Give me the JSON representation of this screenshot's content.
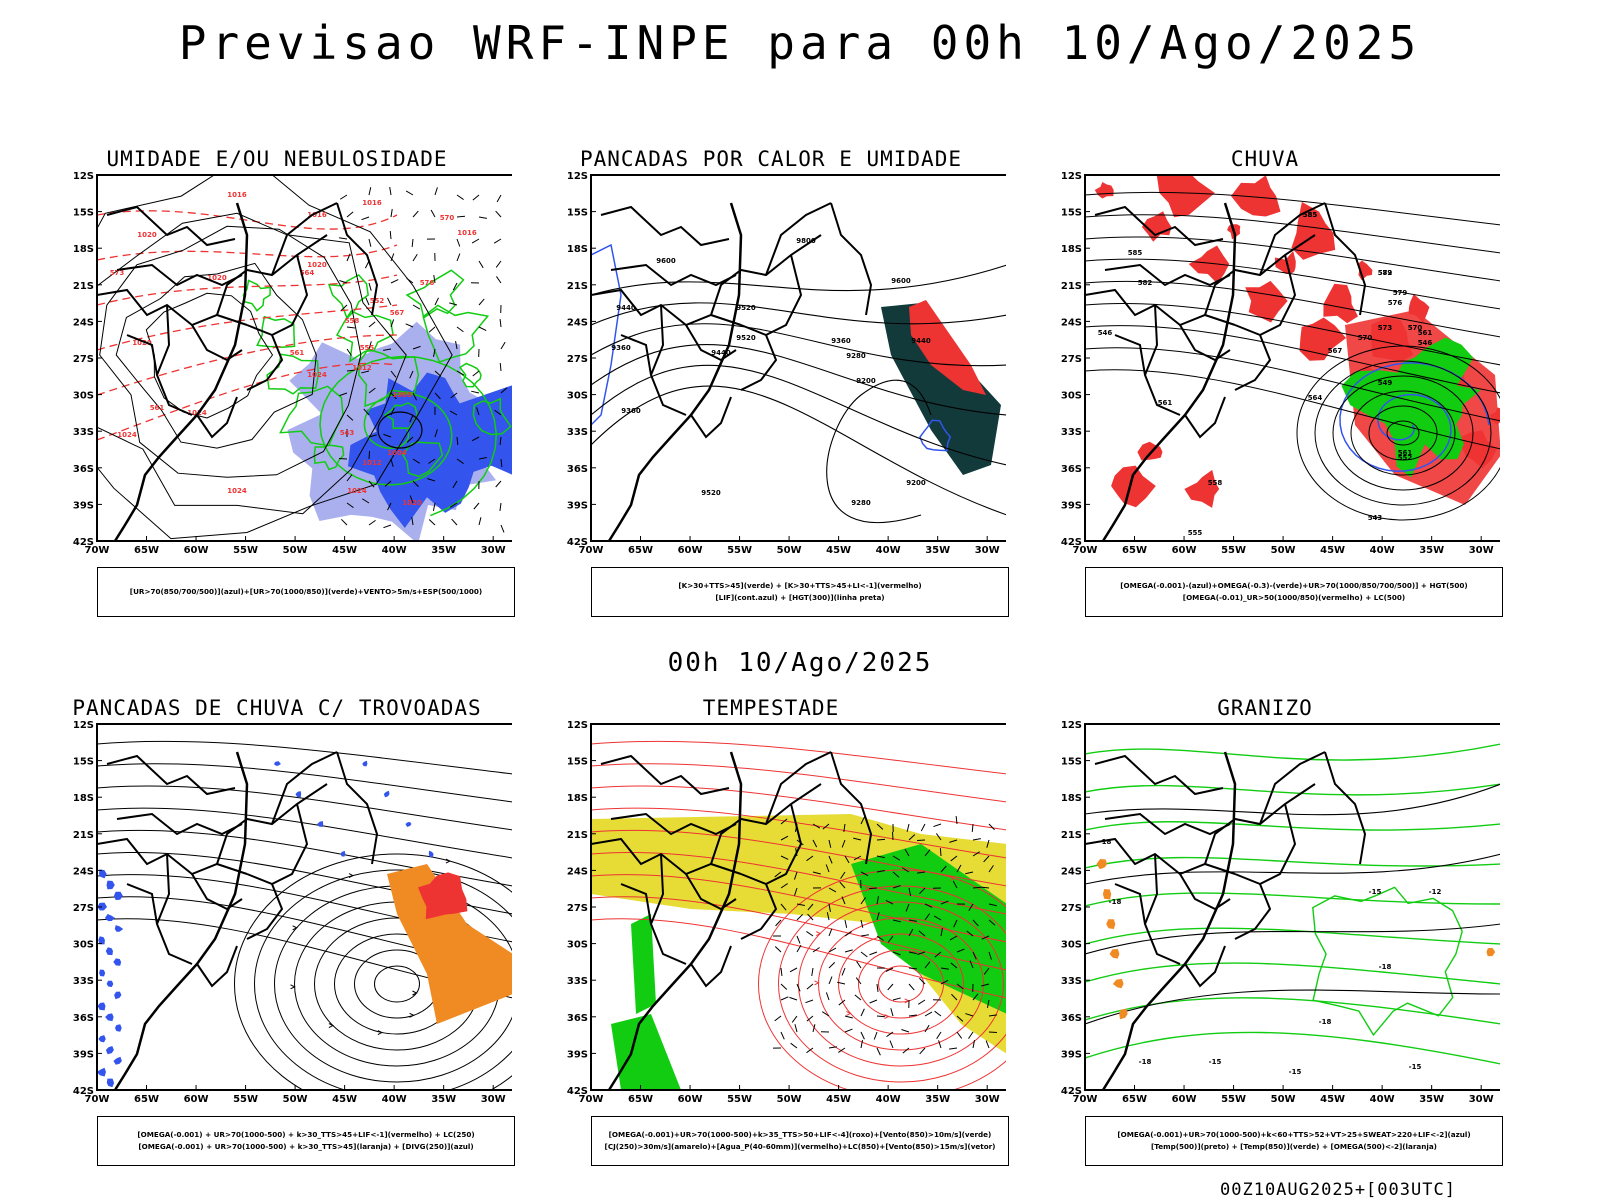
{
  "main_title": "Previsao WRF-INPE  para 00h 10/Ago/2025",
  "mid_title": "00h 10/Ago/2025",
  "footer": "00Z10AUG2025+[003UTC]",
  "axes": {
    "lat_labels": [
      "12S",
      "15S",
      "18S",
      "21S",
      "24S",
      "27S",
      "30S",
      "33S",
      "36S",
      "39S",
      "42S"
    ],
    "lon_labels": [
      "70W",
      "65W",
      "60W",
      "55W",
      "50W",
      "45W",
      "40W",
      "35W",
      "30W"
    ]
  },
  "colors": {
    "blue": "#3355ee",
    "light_blue": "#aab0ee",
    "green": "#11cc11",
    "red": "#ee3333",
    "yellow": "#e6dc35",
    "orange": "#f08a22",
    "dark_teal": "#123a3a"
  },
  "panels": [
    {
      "id": "umidade",
      "title": "UMIDADE E/OU NEBULOSIDADE",
      "legend": [
        "[UR>70(850/700/500)](azul)+[UR>70(1000/850)](verde)+VENTO>5m/s+ESP(500/1000)"
      ],
      "contour_labels": [
        "1016",
        "1016",
        "1016",
        "1016",
        "1020",
        "1020",
        "1020",
        "1020",
        "1024",
        "1024",
        "1024",
        "1024",
        "1012",
        "1012",
        "1008",
        "1004",
        "1020",
        "1024",
        "570",
        "573",
        "564",
        "552",
        "555",
        "558",
        "561",
        "576",
        "567",
        "543",
        "561"
      ]
    },
    {
      "id": "pancadas-calor",
      "title": "PANCADAS POR CALOR E UMIDADE",
      "legend": [
        "[K>30+TTS>45](verde) + [K>30+TTS>45+LI<-1](vermelho)",
        "[LIF](cont.azul) + [HGT(300)](linha preta)"
      ],
      "contour_labels": [
        "9800",
        "9600",
        "9600",
        "9520",
        "9440",
        "9440",
        "9360",
        "9360",
        "9280",
        "9200",
        "9200",
        "9360",
        "9520",
        "9280",
        "9440",
        "9520"
      ]
    },
    {
      "id": "chuva",
      "title": "CHUVA",
      "legend": [
        "[OMEGA(-0.001)-(azul)+OMEGA(-0.3)-(verde)+UR>70(1000/850/700/500)] + HGT(500)",
        "[OMEGA(-0.01)_UR>50(1000/850)(vermelho) + LC(500)"
      ],
      "contour_labels": [
        "585",
        "585",
        "582",
        "579",
        "576",
        "573",
        "570",
        "567",
        "564",
        "561",
        "561",
        "558",
        "555",
        "552",
        "549",
        "546",
        "546",
        "543",
        "570",
        "561",
        "579",
        "582",
        "585"
      ]
    },
    {
      "id": "pancadas-trovoadas",
      "title": "PANCADAS DE CHUVA C/ TROVOADAS",
      "legend": [
        "[OMEGA(-0.001) + UR>70(1000-500) + k>30_TTS>45+LIF<-1](vermelho) + LC(250)",
        "[OMEGA(-0.001) + UR>70(1000-500) + k>30_TTS>45](laranja) + [DIVG(250)](azul)"
      ],
      "contour_labels": []
    },
    {
      "id": "tempestade",
      "title": "TEMPESTADE",
      "legend": [
        "[OMEGA(-0.001)+UR>70(1000-500)+k>35_TTS>50+LIF<-4](roxo)+[Vento(850)>10m/s](verde)",
        "[CJ(250)>30m/s](amarelo)+[Agua_P(40-60mm)](vermelho)+LC(850)+[Vento(850)>15m/s](vetor)"
      ],
      "contour_labels": []
    },
    {
      "id": "granizo",
      "title": "GRANIZO",
      "legend": [
        "[OMEGA(-0.001)+UR>70(1000-500)+k<60+TTS>52+VT>25+SWEAT>220+LIF<-2](azul)",
        "[Temp(500)](preto) + [Temp(850)](verde) + [OMEGA(500)<-2](laranja)"
      ],
      "contour_labels": [
        "-15",
        "-12",
        "-18",
        "-18",
        "-15",
        "-15",
        "-18",
        "-18",
        "-15",
        "-18"
      ]
    }
  ]
}
